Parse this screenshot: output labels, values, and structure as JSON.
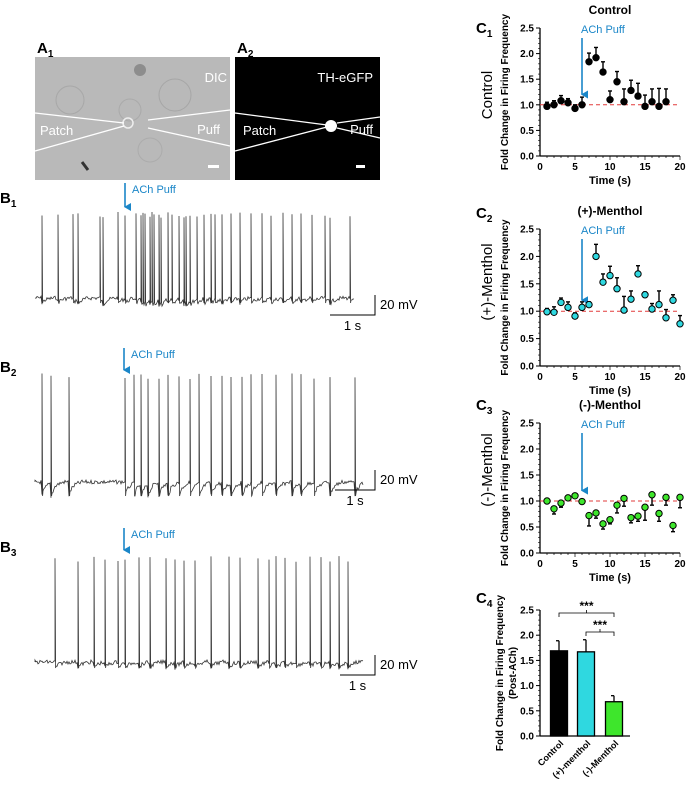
{
  "panel_labels": {
    "A1": "A",
    "A1_sub": "1",
    "A2": "A",
    "A2_sub": "2",
    "B1": "B",
    "B1_sub": "1",
    "B2": "B",
    "B2_sub": "2",
    "B3": "B",
    "B3_sub": "3",
    "C1": "C",
    "C1_sub": "1",
    "C2": "C",
    "C2_sub": "2",
    "C3": "C",
    "C3_sub": "3",
    "C4": "C",
    "C4_sub": "4"
  },
  "images": {
    "A1": {
      "mode": "DIC",
      "left_label": "Patch",
      "right_label": "Puff"
    },
    "A2": {
      "mode": "TH-eGFP",
      "left_label": "Patch",
      "right_label": "Puff"
    }
  },
  "row_labels": [
    "Control",
    "(+)-Menthol",
    "(-)-Menthol"
  ],
  "puff_label": "ACh Puff",
  "scale_bar": {
    "voltage": "20 mV",
    "time": "1 s"
  },
  "colors": {
    "puff": "#1a86c8",
    "control": "#000000",
    "plus_menthol": "#2fd8e0",
    "minus_menthol": "#3ee62c",
    "reference": "#e23b3b"
  },
  "chart_data": [
    {
      "type": "scatter",
      "title": "Control",
      "xlabel": "Time (s)",
      "ylabel": "Fold Change in Firing  Frequency",
      "xlim": [
        0,
        20
      ],
      "ylim": [
        0,
        2.5
      ],
      "xticks": [
        "0",
        "5",
        "10",
        "15",
        "20"
      ],
      "yticks": [
        "0.0",
        "0.5",
        "1.0",
        "1.5",
        "2.0",
        "2.5"
      ],
      "reference_line": 1.0,
      "puff_time": 6,
      "x": [
        1,
        2,
        3,
        4,
        5,
        6,
        7,
        8,
        9,
        10,
        11,
        12,
        13,
        14,
        15,
        16,
        17,
        18
      ],
      "y": [
        0.97,
        1.0,
        1.08,
        1.04,
        0.93,
        1.0,
        1.84,
        1.92,
        1.64,
        1.1,
        1.45,
        1.06,
        1.28,
        1.17,
        0.97,
        1.06,
        0.97,
        1.06
      ],
      "err": [
        0.08,
        0.08,
        0.1,
        0.08,
        0.07,
        0.15,
        0.17,
        0.2,
        0.2,
        0.17,
        0.2,
        0.25,
        0.2,
        0.25,
        0.22,
        0.25,
        0.35,
        0.25
      ],
      "err_dir": "up"
    },
    {
      "type": "scatter",
      "title": "(+)-Menthol",
      "xlabel": "Time (s)",
      "ylabel": "Fold Change in Firing  Frequency",
      "xlim": [
        0,
        20
      ],
      "ylim": [
        0,
        2.5
      ],
      "xticks": [
        "0",
        "5",
        "10",
        "15",
        "20"
      ],
      "yticks": [
        "0.0",
        "0.5",
        "1.0",
        "1.5",
        "2.0",
        "2.5"
      ],
      "reference_line": 1.0,
      "puff_time": 6,
      "x": [
        1,
        2,
        3,
        4,
        5,
        6,
        7,
        8,
        9,
        10,
        11,
        12,
        13,
        14,
        15,
        16,
        17,
        18,
        19,
        20
      ],
      "y": [
        0.99,
        0.98,
        1.16,
        1.07,
        0.91,
        1.07,
        1.12,
        2.0,
        1.53,
        1.65,
        1.41,
        1.02,
        1.22,
        1.68,
        1.3,
        1.04,
        1.12,
        0.88,
        1.2,
        0.77
      ],
      "err": [
        0.06,
        0.1,
        0.08,
        0.1,
        0.06,
        0.1,
        0.05,
        0.22,
        0.15,
        0.17,
        0.2,
        0.25,
        0.15,
        0.15,
        0.05,
        0.1,
        0.25,
        0.15,
        0.1,
        0.15
      ],
      "err_dir": "up"
    },
    {
      "type": "scatter",
      "title": "(-)-Menthol",
      "xlabel": "Time (s)",
      "ylabel": "Fold Change in Firing  Frequency",
      "xlim": [
        0,
        20
      ],
      "ylim": [
        0,
        2.5
      ],
      "xticks": [
        "0",
        "5",
        "10",
        "15",
        "20"
      ],
      "yticks": [
        "0.0",
        "0.5",
        "1.0",
        "1.5",
        "2.0",
        "2.5"
      ],
      "reference_line": 1.0,
      "puff_time": 6,
      "x": [
        1,
        2,
        3,
        4,
        5,
        6,
        7,
        8,
        9,
        10,
        11,
        12,
        13,
        14,
        15,
        16,
        17,
        18,
        19,
        20
      ],
      "y": [
        1.0,
        0.85,
        0.96,
        1.06,
        1.1,
        0.99,
        0.72,
        0.77,
        0.56,
        0.64,
        0.92,
        1.05,
        0.68,
        0.71,
        0.88,
        1.12,
        0.76,
        1.07,
        0.53,
        1.07
      ],
      "err": [
        0.02,
        0.1,
        0.08,
        0.02,
        0.02,
        0.02,
        0.2,
        0.1,
        0.1,
        0.08,
        0.15,
        0.15,
        0.1,
        0.1,
        0.25,
        0.2,
        0.15,
        0.15,
        0.12,
        0.2
      ],
      "err_dir": "down"
    },
    {
      "type": "bar",
      "ylabel": "Fold Change in Firing  Frequency",
      "ylabel2": "(Post-ACh)",
      "ylim": [
        0,
        2.5
      ],
      "yticks": [
        "0.0",
        "0.5",
        "1.0",
        "1.5",
        "2.0",
        "2.5"
      ],
      "categories": [
        "Control",
        "(+)-menthol",
        "(-)-Menthol"
      ],
      "values": [
        1.69,
        1.67,
        0.68
      ],
      "err": [
        0.2,
        0.24,
        0.12
      ],
      "significance": [
        {
          "pair": [
            0,
            2
          ],
          "label": "***"
        },
        {
          "pair": [
            1,
            2
          ],
          "label": "***"
        }
      ]
    },
    {
      "type": "trace",
      "name": "B1",
      "spike_times_s": [
        0.15,
        0.5,
        0.85,
        0.95,
        1.45,
        1.5,
        1.85,
        2.0,
        2.25,
        2.35,
        2.4,
        2.45,
        2.55,
        2.6,
        2.65,
        2.75,
        2.8,
        2.95,
        3.05,
        3.2,
        3.3,
        3.35,
        3.45,
        3.6,
        3.75,
        3.9,
        4.0,
        4.15,
        4.35,
        4.55,
        4.8,
        5.05,
        5.25,
        5.5,
        5.7,
        5.9,
        6.15,
        6.45,
        6.55,
        7.0
      ],
      "duration_s": 7.1
    },
    {
      "type": "trace",
      "name": "B2",
      "spike_times_s": [
        0.15,
        0.35,
        0.75,
        2.0,
        2.2,
        2.35,
        2.5,
        2.75,
        2.95,
        3.2,
        3.45,
        3.65,
        3.9,
        4.15,
        4.35,
        4.6,
        4.8,
        5.05,
        5.35,
        5.7,
        5.9,
        6.2,
        6.55,
        7.1
      ],
      "duration_s": 7.3
    },
    {
      "type": "trace",
      "name": "B3",
      "spike_times_s": [
        0.45,
        0.95,
        1.3,
        1.55,
        1.85,
        2.0,
        2.3,
        2.55,
        2.9,
        3.1,
        3.3,
        3.55,
        3.9,
        4.3,
        4.55,
        4.95,
        5.2,
        5.35,
        5.55,
        5.8,
        6.1,
        6.35,
        6.55,
        6.75,
        6.95
      ],
      "duration_s": 7.3
    }
  ]
}
